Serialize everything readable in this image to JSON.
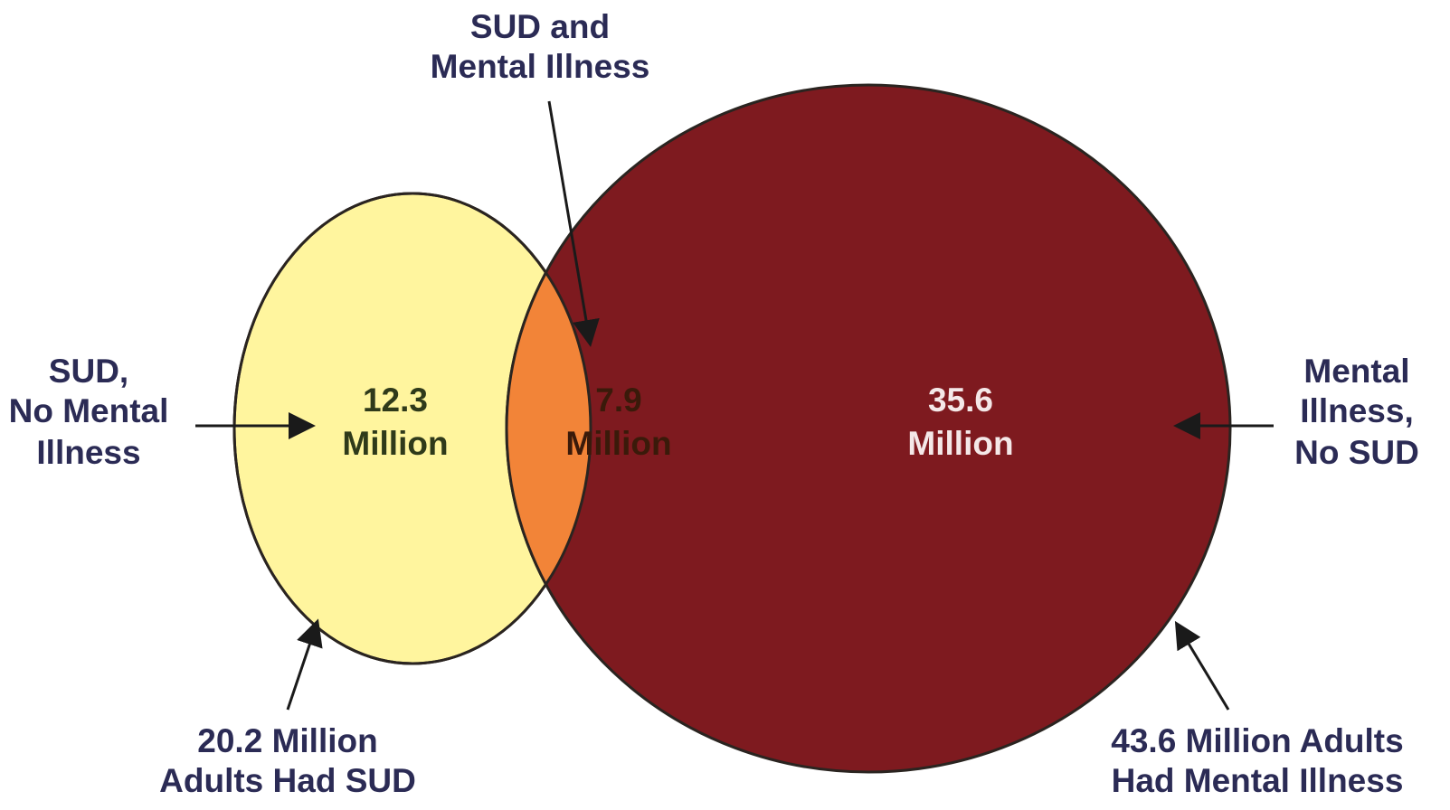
{
  "diagram": {
    "type": "venn",
    "regions": {
      "sud_only": {
        "value": "12.3",
        "unit": "Million"
      },
      "both": {
        "value": "7.9",
        "unit": "Million"
      },
      "mi_only": {
        "value": "35.6",
        "unit": "Million"
      }
    },
    "callouts": {
      "both_label": [
        "SUD and",
        "Mental Illness"
      ],
      "sud_only_label": [
        "SUD,",
        "No Mental",
        "Illness"
      ],
      "mi_only_label": [
        "Mental",
        "Illness,",
        "No SUD"
      ],
      "sud_total_label": [
        "20.2 Million",
        "Adults Had SUD"
      ],
      "mi_total_label": [
        "43.6 Million Adults",
        "Had Mental Illness"
      ]
    },
    "colors": {
      "sud_circle": "#fff59e",
      "overlap": "#f28438",
      "mi_circle": "#7e1a1f",
      "outline": "#2a2420",
      "label_text": "#2b2b55"
    }
  }
}
